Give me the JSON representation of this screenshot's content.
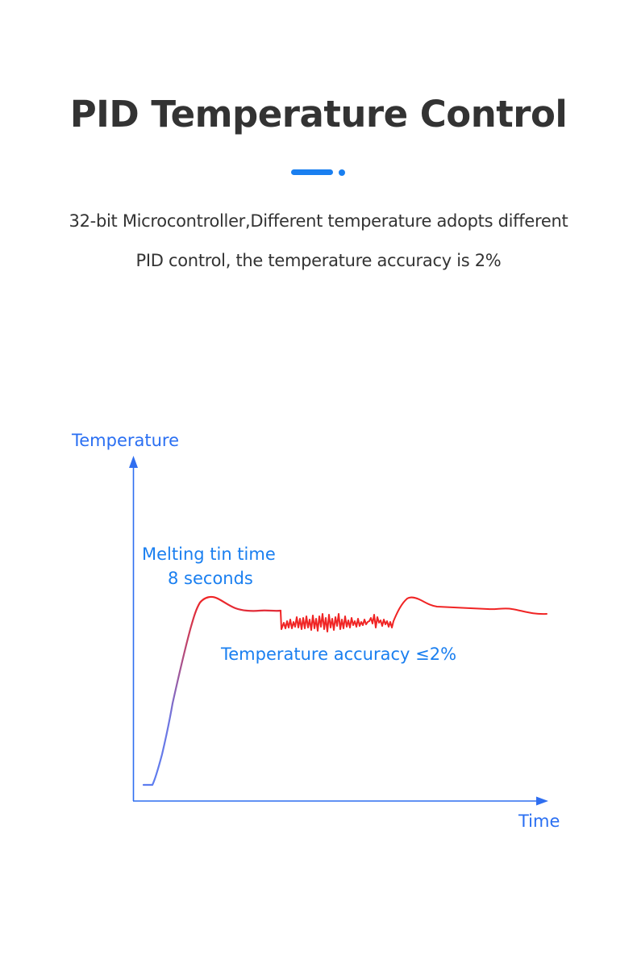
{
  "page": {
    "title": "PID Temperature Control",
    "subtitle_line1": "32-bit Microcontroller,Different temperature adopts different",
    "subtitle_line2": "PID control, the temperature accuracy is 2%"
  },
  "colors": {
    "title_text": "#333333",
    "accent": "#1a7ff0",
    "axis": "#2f6ef0",
    "label_blue": "#2a6ff2",
    "annotation_blue": "#1a7ff0",
    "curve_red": "#f02424",
    "curve_blue": "#5d7df0"
  },
  "diagram": {
    "y_axis_label": "Temperature",
    "x_axis_label": "Time",
    "annotation_melting_line1": "Melting tin time",
    "annotation_melting_line2": "8 seconds",
    "annotation_accuracy": "Temperature accuracy ≤2%"
  }
}
